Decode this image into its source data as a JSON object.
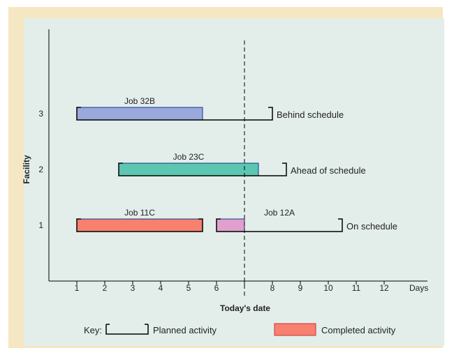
{
  "chart_data": {
    "type": "gantt",
    "xlabel": "Today's date",
    "ylabel": "Facility",
    "x_unit_label": "Days",
    "xticks": [
      1,
      2,
      3,
      4,
      5,
      6,
      7,
      8,
      9,
      10,
      11,
      12
    ],
    "xtick_labels": [
      "1",
      "2",
      "3",
      "4",
      "5",
      "6",
      "",
      "8",
      "9",
      "10",
      "11",
      "12"
    ],
    "xlim": [
      0,
      12.6
    ],
    "ylim": [
      0,
      4
    ],
    "yticks": [
      1,
      2,
      3
    ],
    "today": 7,
    "jobs": [
      {
        "name": "Job 32B",
        "facility": 3,
        "planned_start": 1,
        "planned_end": 8,
        "completed_start": 1,
        "completed_end": 5.5,
        "color": "#9aa8dc",
        "status": "Behind schedule"
      },
      {
        "name": "Job 23C",
        "facility": 2,
        "planned_start": 2.5,
        "planned_end": 8.5,
        "completed_start": 2.5,
        "completed_end": 7.5,
        "color": "#5cc6b1",
        "status": "Ahead of schedule"
      },
      {
        "name": "Job 11C",
        "facility": 1,
        "planned_start": 1,
        "planned_end": 5.5,
        "completed_start": 1,
        "completed_end": 5.5,
        "color": "#f7806e",
        "status": ""
      },
      {
        "name": "Job 12A",
        "facility": 1,
        "planned_start": 6,
        "planned_end": 10.5,
        "completed_start": 6,
        "completed_end": 7,
        "color": "#e0a0cc",
        "status": "On schedule"
      }
    ],
    "legend": {
      "key_label": "Key:",
      "planned_label": "Planned activity",
      "completed_label": "Completed activity",
      "completed_color": "#f7806e"
    }
  }
}
